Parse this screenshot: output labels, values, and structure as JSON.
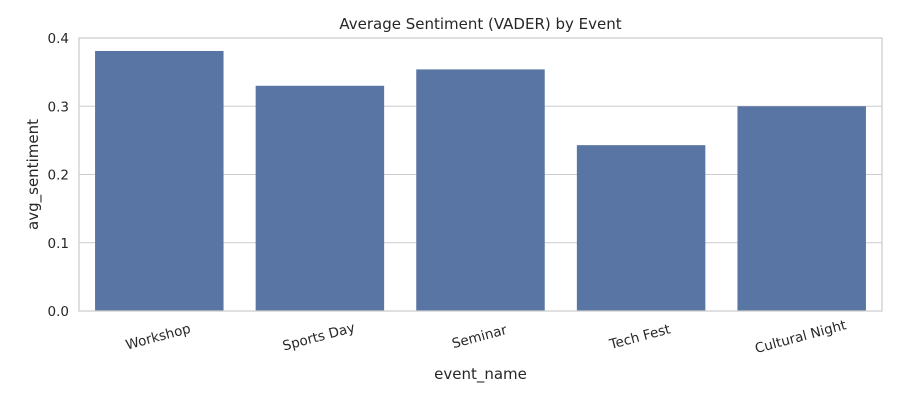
{
  "chart_data": {
    "type": "bar",
    "title": "Average Sentiment (VADER) by Event",
    "xlabel": "event_name",
    "ylabel": "avg_sentiment",
    "categories": [
      "Workshop",
      "Sports Day",
      "Seminar",
      "Tech Fest",
      "Cultural Night"
    ],
    "values": [
      0.381,
      0.33,
      0.354,
      0.243,
      0.3
    ],
    "ylim": [
      0,
      0.4
    ],
    "yticks": [
      0.0,
      0.1,
      0.2,
      0.3,
      0.4
    ],
    "ytick_labels": [
      "0.0",
      "0.1",
      "0.2",
      "0.3",
      "0.4"
    ],
    "grid": "y",
    "bar_color": "#5975a4",
    "grid_color": "#cccccc"
  }
}
